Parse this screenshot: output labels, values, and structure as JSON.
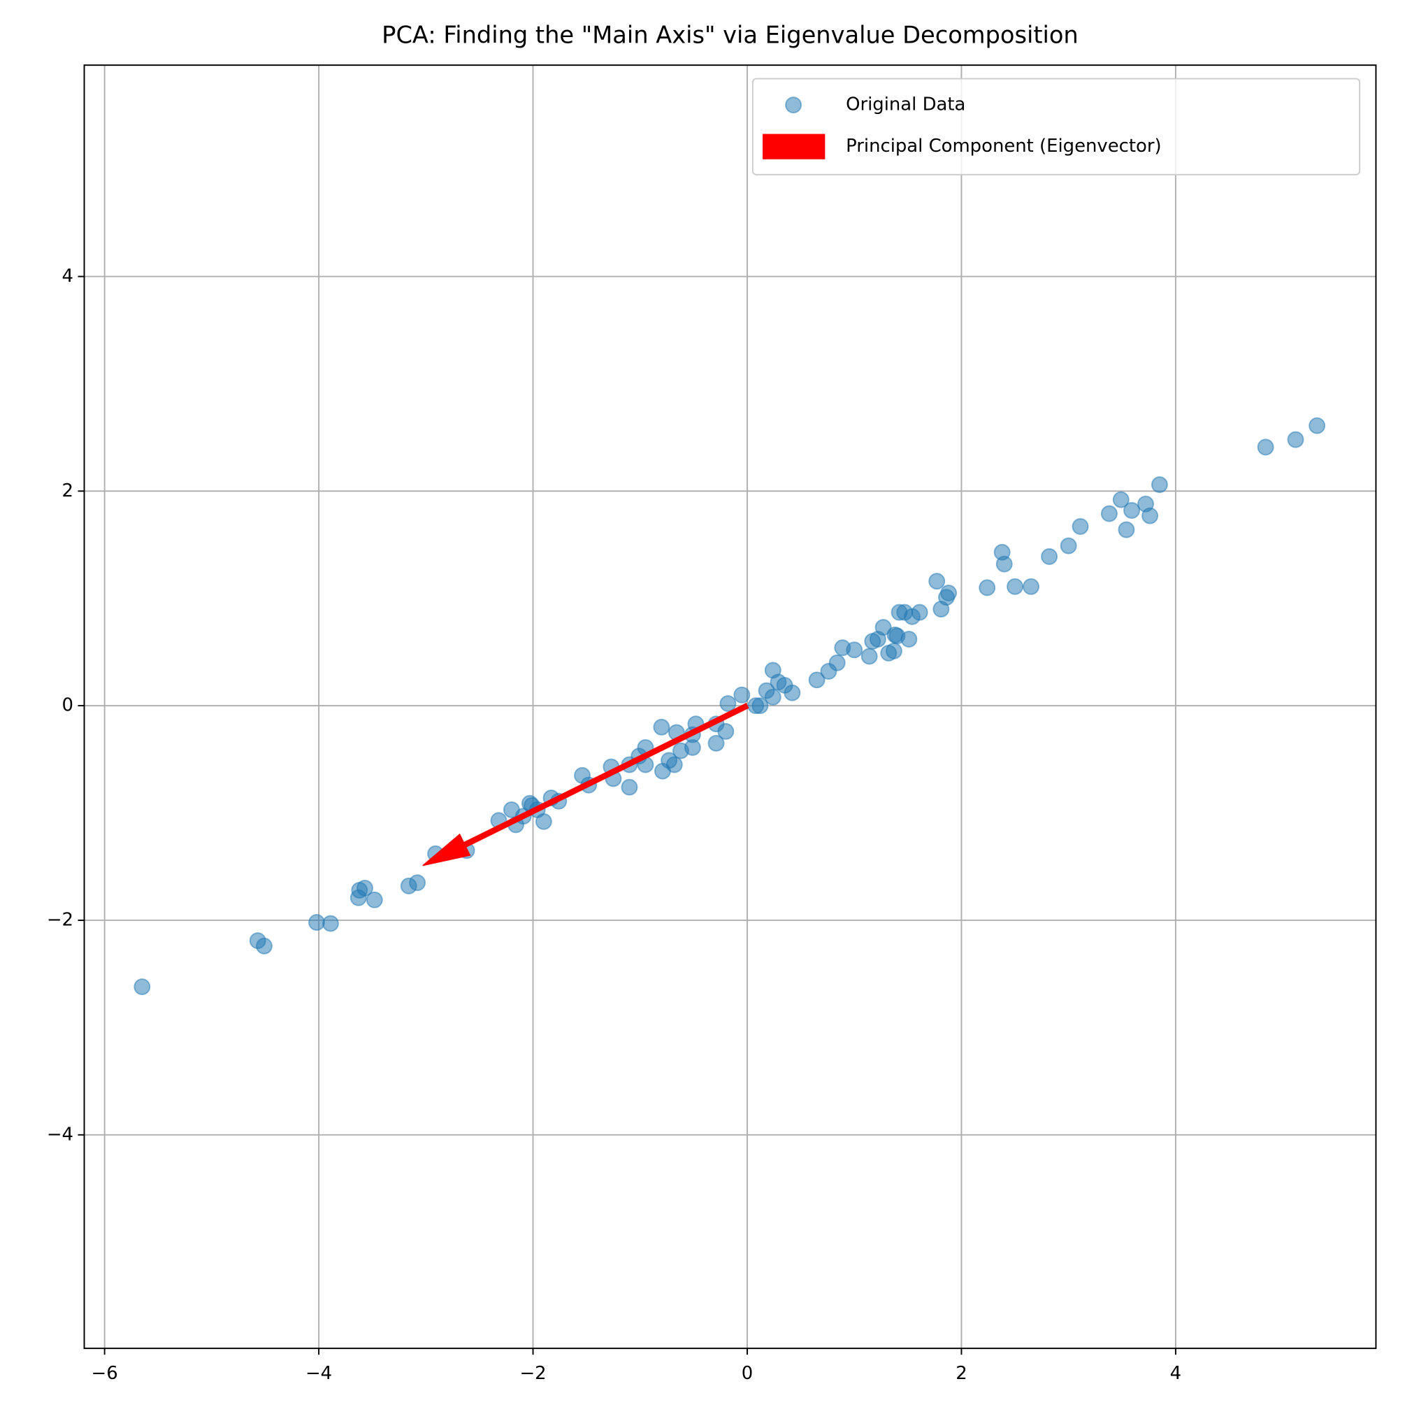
{
  "chart_data": {
    "type": "scatter",
    "title": "PCA: Finding the \"Main Axis\" via Eigenvalue Decomposition",
    "xlim": [
      -6.19,
      5.87
    ],
    "ylim": [
      -5.99,
      5.97
    ],
    "xticks": [
      {
        "value": -6,
        "label": "−6"
      },
      {
        "value": -4,
        "label": "−4"
      },
      {
        "value": -2,
        "label": "−2"
      },
      0,
      2,
      4
    ],
    "yticks": [
      {
        "value": -4,
        "label": "−4"
      },
      {
        "value": -2,
        "label": "−2"
      },
      0,
      2,
      4
    ],
    "grid": true,
    "legend": "upper right",
    "series": [
      {
        "name": "Original Data",
        "color": "#1f77b4",
        "x": [
          -5.65,
          -4.57,
          -4.51,
          -4.02,
          -3.89,
          -3.63,
          -3.62,
          -3.57,
          -3.48,
          -3.16,
          -3.08,
          -2.91,
          -2.62,
          -2.32,
          -2.2,
          -2.16,
          -2.09,
          -2.03,
          -2.01,
          -1.96,
          -1.9,
          -1.83,
          -1.76,
          -1.54,
          -1.48,
          -1.27,
          -1.25,
          -1.1,
          -1.1,
          -1.01,
          -0.95,
          -0.95,
          -0.8,
          -0.79,
          -0.73,
          -0.68,
          -0.66,
          -0.62,
          -0.51,
          -0.51,
          -0.48,
          -0.29,
          -0.29,
          -0.2,
          -0.18,
          -0.05,
          0.08,
          0.12,
          0.18,
          0.24,
          0.24,
          0.29,
          0.35,
          0.42,
          0.65,
          0.76,
          0.84,
          0.89,
          1.0,
          1.14,
          1.17,
          1.22,
          1.27,
          1.32,
          1.37,
          1.38,
          1.4,
          1.42,
          1.47,
          1.51,
          1.54,
          1.61,
          1.77,
          1.81,
          1.86,
          1.88,
          2.24,
          2.38,
          2.4,
          2.5,
          2.65,
          2.82,
          3.0,
          3.11,
          3.38,
          3.49,
          3.54,
          3.59,
          3.72,
          3.76,
          3.85,
          4.84,
          5.12,
          5.32
        ],
        "y": [
          -2.62,
          -2.19,
          -2.24,
          -2.02,
          -2.03,
          -1.79,
          -1.72,
          -1.7,
          -1.81,
          -1.68,
          -1.65,
          -1.38,
          -1.35,
          -1.07,
          -0.97,
          -1.11,
          -1.03,
          -0.91,
          -0.93,
          -0.97,
          -1.08,
          -0.86,
          -0.89,
          -0.65,
          -0.74,
          -0.57,
          -0.68,
          -0.76,
          -0.55,
          -0.47,
          -0.39,
          -0.55,
          -0.2,
          -0.61,
          -0.51,
          -0.55,
          -0.25,
          -0.42,
          -0.39,
          -0.27,
          -0.17,
          -0.17,
          -0.35,
          -0.24,
          0.02,
          0.1,
          0.0,
          0.0,
          0.14,
          0.33,
          0.08,
          0.22,
          0.19,
          0.12,
          0.24,
          0.32,
          0.4,
          0.54,
          0.52,
          0.46,
          0.6,
          0.62,
          0.73,
          0.49,
          0.51,
          0.66,
          0.65,
          0.87,
          0.87,
          0.62,
          0.83,
          0.87,
          1.16,
          0.9,
          1.01,
          1.05,
          1.1,
          1.43,
          1.32,
          1.11,
          1.11,
          1.39,
          1.49,
          1.67,
          1.79,
          1.92,
          1.64,
          1.82,
          1.88,
          1.77,
          2.06,
          2.41,
          2.48,
          2.61
        ]
      }
    ],
    "arrow": {
      "name": "Principal Component (Eigenvector)",
      "color": "#ff0000",
      "x": 0,
      "y": 0,
      "dx": -3.03,
      "dy": -1.49
    }
  }
}
